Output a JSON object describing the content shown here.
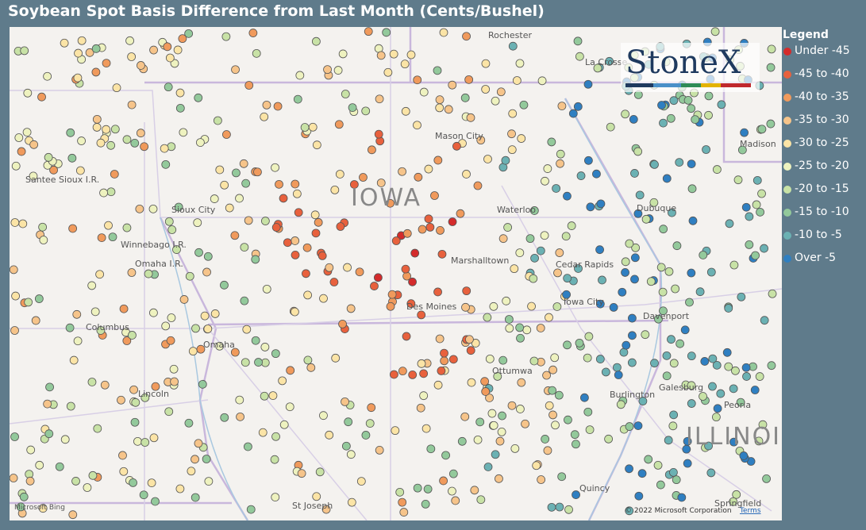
{
  "title": "Soybean Spot Basis Difference from Last Month (Cents/Bushel)",
  "legend": {
    "title": "Legend",
    "items": [
      {
        "label": "Under -45",
        "color": "#d42b2b"
      },
      {
        "label": "-45 to -40",
        "color": "#e8613d"
      },
      {
        "label": "-40 to -35",
        "color": "#f09a5c"
      },
      {
        "label": "-35 to -30",
        "color": "#f6c48a"
      },
      {
        "label": "-30 to -25",
        "color": "#fbe4a6"
      },
      {
        "label": "-25 to -20",
        "color": "#eef2bf"
      },
      {
        "label": "-20 to -15",
        "color": "#c8e2a6"
      },
      {
        "label": "-15 to -10",
        "color": "#93c99b"
      },
      {
        "label": "-10 to -5",
        "color": "#6bb1b3"
      },
      {
        "label": "Over -5",
        "color": "#2f7fc1"
      }
    ]
  },
  "map_labels": [
    "Rochester",
    "La Crosse",
    "Madison",
    "Mason City",
    "IOWA",
    "Waterloo",
    "Dubuque",
    "Sioux City",
    "Winnebago I.R.",
    "Omaha I.R.",
    "Santee Sioux I.R.",
    "Marshalltown",
    "Cedar Rapids",
    "Iowa City",
    "Davenport",
    "Columbus",
    "Omaha",
    "Des Moines",
    "Ottumwa",
    "Lincoln",
    "Burlington",
    "Galesburg",
    "Peoria",
    "ILLINOIS",
    "Quincy",
    "St Joseph",
    "Springfield"
  ],
  "logo": "StoneX",
  "attribution": {
    "bing": "Microsoft Bing",
    "copyright": "© 2022 Microsoft Corporation",
    "terms": "Terms"
  }
}
